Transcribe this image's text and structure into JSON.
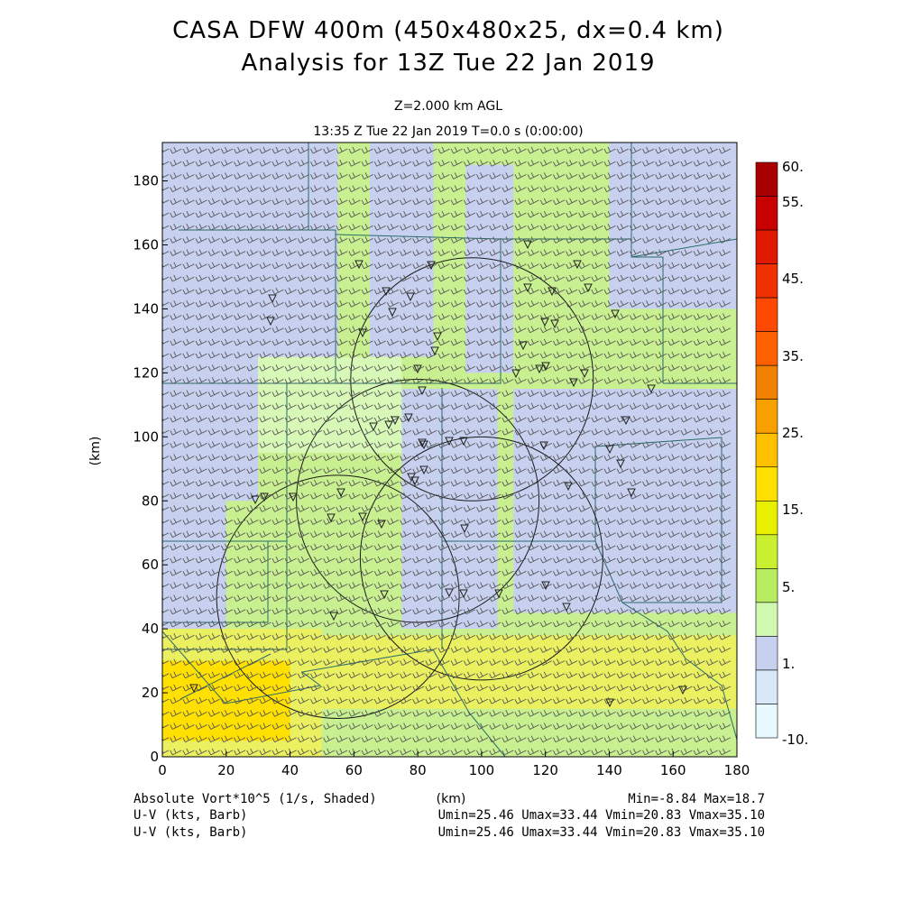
{
  "title": {
    "line1": "CASA DFW 400m (450x480x25, dx=0.4 km)",
    "line2": "Analysis for 13Z Tue 22 Jan 2019"
  },
  "subtitle": {
    "level": "Z=2.000 km AGL",
    "time": "13:35 Z Tue 22 Jan 2019    T=0.0 s (0:00:00)"
  },
  "footer": {
    "field": "Absolute Vort*10^5 (1/s, Shaded)",
    "minmax": "Min=-8.84 Max=18.7",
    "uv1_label": "U-V (kts, Barb)",
    "uv1_stats": "Umin=25.46 Umax=33.44 Vmin=20.83 Vmax=35.10",
    "uv2_label": "U-V (kts, Barb)",
    "uv2_stats": "Umin=25.46 Umax=33.44 Vmin=20.83 Vmax=35.10"
  },
  "chart_data": {
    "type": "heatmap",
    "xlabel": "(km)",
    "ylabel": "(km)",
    "xlim": [
      0,
      180
    ],
    "ylim": [
      0,
      192
    ],
    "x_ticks": [
      0,
      20,
      40,
      60,
      80,
      100,
      120,
      140,
      160,
      180
    ],
    "y_ticks": [
      0,
      20,
      40,
      60,
      80,
      100,
      120,
      140,
      160,
      180
    ],
    "colorbar": {
      "labels": [
        {
          "text": "60.",
          "level": 60
        },
        {
          "text": "55.",
          "level": 55
        },
        {
          "text": "45.",
          "level": 45
        },
        {
          "text": "35.",
          "level": 35
        },
        {
          "text": "25.",
          "level": 25
        },
        {
          "text": "15.",
          "level": 15
        },
        {
          "text": "5.",
          "level": 5
        },
        {
          "text": "1.",
          "level": 1
        },
        {
          "text": "-10.",
          "level": -10
        }
      ],
      "colors_top_to_bottom": [
        "#a80000",
        "#c80000",
        "#e01800",
        "#f03000",
        "#ff4800",
        "#ff6000",
        "#f08000",
        "#f8a000",
        "#ffc000",
        "#ffe000",
        "#e8f000",
        "#c8f030",
        "#b8ec60",
        "#d0f8b0",
        "#c8d0f0",
        "#d8e8f8",
        "#e8f8ff"
      ]
    },
    "shading": {
      "background": "#c8f090",
      "regions": [
        {
          "level": "1",
          "color": "#c8d0f0",
          "x": [
            0,
            55
          ],
          "y": [
            120,
            192
          ]
        },
        {
          "level": "1",
          "color": "#c8d0f0",
          "x": [
            0,
            30
          ],
          "y": [
            80,
            120
          ]
        },
        {
          "level": "1",
          "color": "#c8d0f0",
          "x": [
            0,
            20
          ],
          "y": [
            40,
            80
          ]
        },
        {
          "level": "1",
          "color": "#c8d0f0",
          "x": [
            65,
            85
          ],
          "y": [
            125,
            192
          ]
        },
        {
          "level": "1",
          "color": "#c8d0f0",
          "x": [
            95,
            110
          ],
          "y": [
            120,
            185
          ]
        },
        {
          "level": "1",
          "color": "#c8d0f0",
          "x": [
            110,
            180
          ],
          "y": [
            45,
            115
          ]
        },
        {
          "level": "1",
          "color": "#c8d0f0",
          "x": [
            75,
            105
          ],
          "y": [
            40,
            115
          ]
        },
        {
          "level": "1",
          "color": "#c8d0f0",
          "x": [
            140,
            180
          ],
          "y": [
            140,
            192
          ]
        },
        {
          "level": "5",
          "color": "#d8f8b8",
          "x": [
            30,
            75
          ],
          "y": [
            95,
            125
          ]
        },
        {
          "level": "15",
          "color": "#eaf060",
          "x": [
            0,
            50
          ],
          "y": [
            0,
            40
          ]
        },
        {
          "level": "15",
          "color": "#eaf060",
          "x": [
            50,
            180
          ],
          "y": [
            15,
            38
          ]
        },
        {
          "level": "25",
          "color": "#ffe000",
          "x": [
            0,
            40
          ],
          "y": [
            5,
            30
          ]
        }
      ]
    },
    "radar_rings": [
      {
        "center": [
          97,
          118
        ],
        "radius": 38
      },
      {
        "center": [
          80,
          80
        ],
        "radius": 38
      },
      {
        "center": [
          100,
          62
        ],
        "radius": 38
      },
      {
        "center": [
          55,
          50
        ],
        "radius": 38
      }
    ],
    "wind_barbs": {
      "spacing_km": 4,
      "direction": "southwesterly"
    }
  }
}
